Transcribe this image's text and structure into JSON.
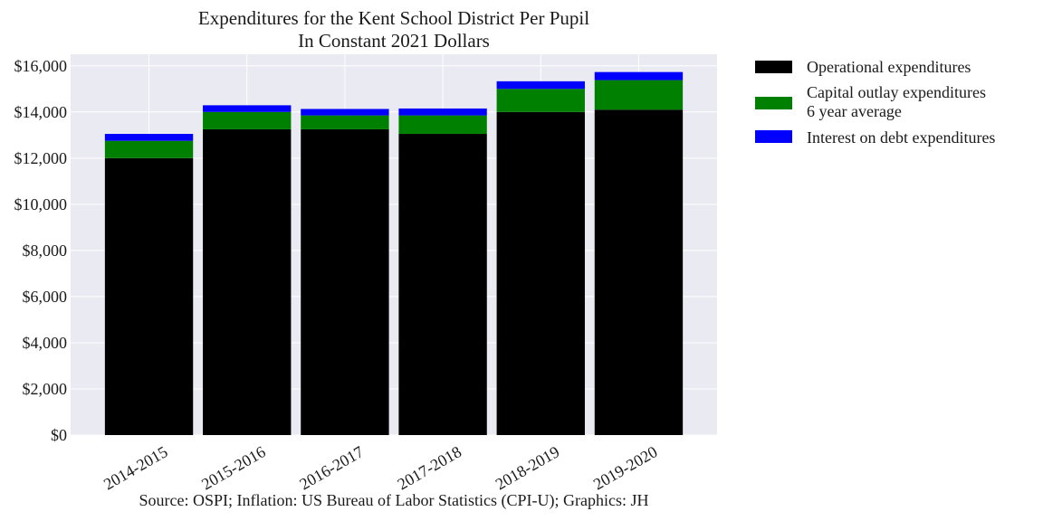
{
  "chart_data": {
    "type": "bar",
    "stacked": true,
    "title": [
      "Expenditures for the Kent School District Per Pupil",
      "In Constant 2021 Dollars"
    ],
    "categories": [
      "2014-2015",
      "2015-2016",
      "2016-2017",
      "2017-2018",
      "2018-2019",
      "2019-2020"
    ],
    "series": [
      {
        "name": "Operational expenditures",
        "color": "#000000",
        "values": [
          12000,
          13250,
          13250,
          13050,
          14000,
          14100
        ]
      },
      {
        "name": "Capital outlay expenditures\n6 year average",
        "name_lines": [
          "Capital outlay expenditures",
          "6 year average"
        ],
        "color": "#008000",
        "values": [
          750,
          750,
          600,
          800,
          1000,
          1280
        ]
      },
      {
        "name": "Interest on debt expenditures",
        "color": "#0000ff",
        "values": [
          300,
          290,
          280,
          300,
          330,
          350
        ]
      }
    ],
    "ylim": [
      0,
      16500
    ],
    "yticks": [
      0,
      2000,
      4000,
      6000,
      8000,
      10000,
      12000,
      14000,
      16000
    ],
    "ytick_labels": [
      "$0",
      "$2,000",
      "$4,000",
      "$6,000",
      "$8,000",
      "$10,000",
      "$12,000",
      "$14,000",
      "$16,000"
    ],
    "grid": true,
    "legend_position": "outside-right-top",
    "xtick_rotation": 30,
    "source": "Source: OSPI; Inflation: US Bureau of Labor Statistics (CPI-U); Graphics: JH"
  }
}
